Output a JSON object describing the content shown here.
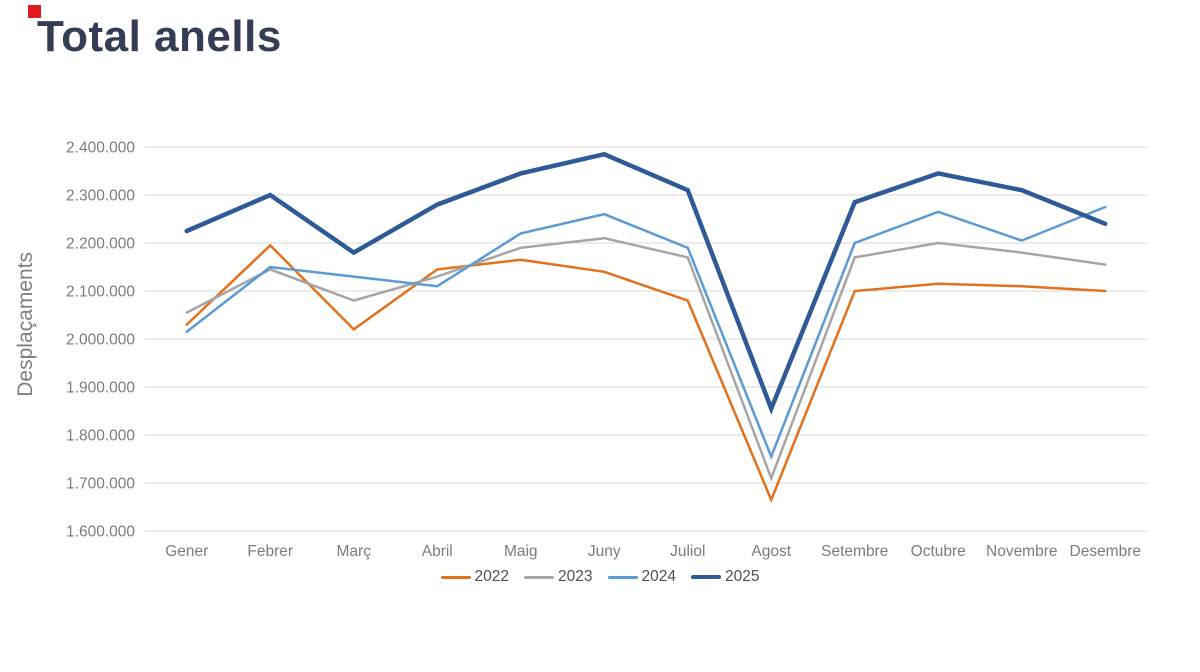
{
  "decor": {
    "corner_mark_color": "#e0181f"
  },
  "chart_data": {
    "type": "line",
    "title": "Total anells",
    "ylabel": "Desplaçaments",
    "xlabel": "",
    "categories": [
      "Gener",
      "Febrer",
      "Març",
      "Abril",
      "Maig",
      "Juny",
      "Juliol",
      "Agost",
      "Setembre",
      "Octubre",
      "Novembre",
      "Desembre"
    ],
    "series": [
      {
        "name": "2022",
        "color": "#e2711e",
        "thick": false,
        "values": [
          2030000,
          2195000,
          2020000,
          2145000,
          2165000,
          2140000,
          2080000,
          1665000,
          2100000,
          2115000,
          2110000,
          2100000
        ]
      },
      {
        "name": "2023",
        "color": "#a6a6a6",
        "thick": false,
        "values": [
          2055000,
          2145000,
          2080000,
          2130000,
          2190000,
          2210000,
          2170000,
          1710000,
          2170000,
          2200000,
          2180000,
          2155000
        ]
      },
      {
        "name": "2024",
        "color": "#5b9bd5",
        "thick": false,
        "values": [
          2015000,
          2150000,
          2130000,
          2110000,
          2220000,
          2260000,
          2190000,
          1755000,
          2200000,
          2265000,
          2205000,
          2275000
        ]
      },
      {
        "name": "2025",
        "color": "#2e5b97",
        "thick": true,
        "values": [
          2225000,
          2300000,
          2180000,
          2280000,
          2345000,
          2385000,
          2310000,
          1855000,
          2285000,
          2345000,
          2310000,
          2240000
        ]
      }
    ],
    "ylim": [
      1600000,
      2400000
    ],
    "ytick_step": 100000,
    "ytick_labels": [
      "1.600.000",
      "1.700.000",
      "1.800.000",
      "1.900.000",
      "2.000.000",
      "2.100.000",
      "2.200.000",
      "2.300.000",
      "2.400.000"
    ],
    "grid": true,
    "gridline_color": "#d9d9d9",
    "tick_label_color": "#7c7c7c",
    "legend_position": "bottom"
  }
}
